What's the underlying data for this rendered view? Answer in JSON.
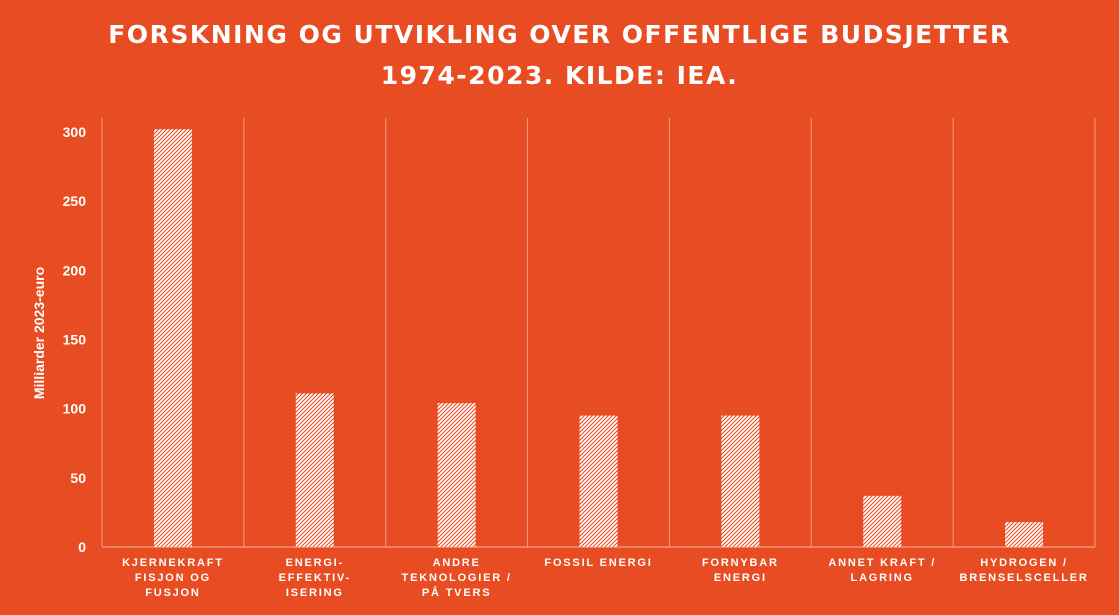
{
  "colors": {
    "background": "#E84C22",
    "text": "#FFFFFF",
    "bar_fill": "#FFFFFF",
    "bar_hatch": "#E84C22",
    "gridline": "#F19C81",
    "axis": "#F5B7A4"
  },
  "chart_data": {
    "type": "bar",
    "title_lines": [
      "FORSKNING OG UTVIKLING  OVER OFFENTLIGE BUDSJETTER",
      "1974-2023. KILDE: IEA."
    ],
    "xlabel": "",
    "ylabel": "Milliarder 2023-euro",
    "ylim": [
      0,
      300
    ],
    "yticks": [
      0,
      50,
      100,
      150,
      200,
      250,
      300
    ],
    "categories": [
      [
        "KJERNEKRAFT",
        "FISJON OG",
        "FUSJON"
      ],
      [
        "ENERGI-",
        "EFFEKTIV-",
        "ISERING"
      ],
      [
        "ANDRE",
        "TEKNOLOGIER /",
        "PÅ TVERS"
      ],
      [
        "FOSSIL ENERGI"
      ],
      [
        "FORNYBAR",
        "ENERGI"
      ],
      [
        "ANNET KRAFT /",
        "LAGRING"
      ],
      [
        "HYDROGEN /",
        "BRENSELSCELLER"
      ]
    ],
    "values": [
      302,
      111,
      104,
      95,
      95,
      37,
      18
    ],
    "grid": "vertical category separators",
    "legend": "none",
    "bar_pattern": "diagonal hatch"
  }
}
